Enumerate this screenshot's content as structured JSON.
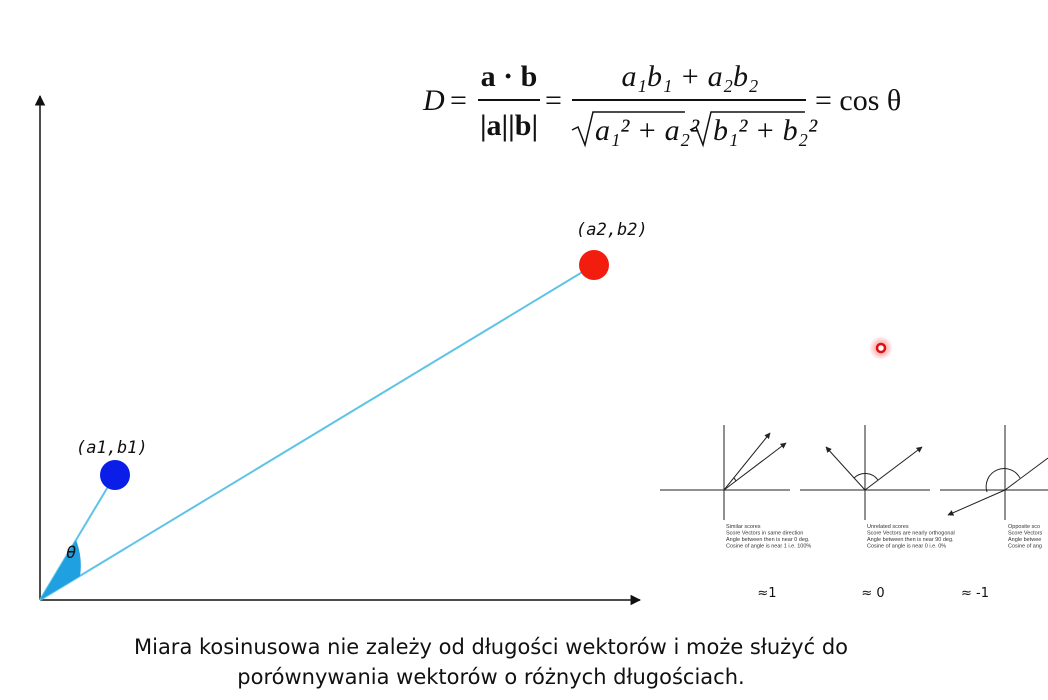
{
  "formula": {
    "lhs": "D",
    "eq1": "=",
    "frac1_num": "a · b",
    "frac1_den": "|a||b|",
    "eq2": "=",
    "frac2_num": "a₁b₁ + a₂b₂",
    "frac2_den_a": "a₁² + a₂²",
    "frac2_den_b": "b₁² + b₂²",
    "rhs": "= cos θ"
  },
  "plot": {
    "point_a_label": "(a1,b1)",
    "point_b_label": "(a2,b2)",
    "angle_label": "θ"
  },
  "panels": [
    {
      "lines": [
        "Similar scores",
        "Score Vectors in same direction",
        "Angle between then is near 0 deg.",
        "Cosine of angle is near 1 i.e. 100%"
      ],
      "approx": "≈1"
    },
    {
      "lines": [
        "Unrelated scores",
        "Score Vectors are nearly orthogonal",
        "Angle between then is near 90 deg.",
        "Cosine of angle is near 0 i.e. 0%"
      ],
      "approx": "≈ 0"
    },
    {
      "lines": [
        "Opposite sco",
        "Score Vectors",
        "Angle betwee",
        "Cosine of ang"
      ],
      "approx": "≈ -1"
    }
  ],
  "caption": [
    "Miara kosinusowa nie zależy od długości wektorów i może służyć do",
    "porównywania wektorów o różnych długościach."
  ]
}
